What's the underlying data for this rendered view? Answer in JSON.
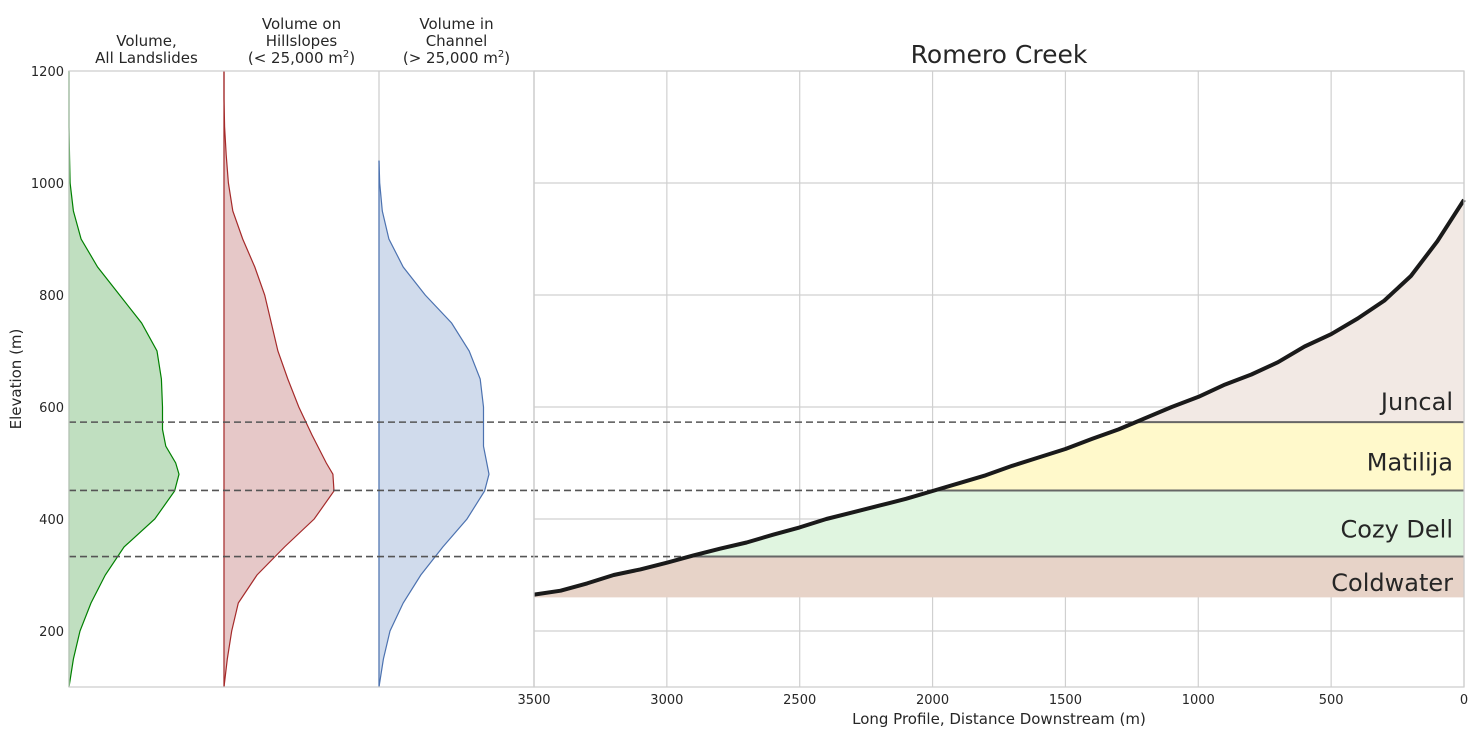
{
  "chart_data": {
    "type": "area",
    "title": "Romero Creek",
    "ylabel": "Elevation (m)",
    "xlabel": "Long Profile, Distance Downstream (m)",
    "ylim": [
      100,
      1200
    ],
    "xlim": [
      3500,
      0
    ],
    "x_inverted": true,
    "grid": true,
    "y_ticks": [
      200,
      400,
      600,
      800,
      1000,
      1200
    ],
    "x_ticks": [
      3500,
      3000,
      2500,
      2000,
      1500,
      1000,
      500,
      0
    ],
    "contact_elevations": [
      333,
      451,
      573
    ],
    "density_panels": [
      {
        "title_lines": [
          "Volume,",
          "All Landslides"
        ],
        "superscript": "",
        "title_suffix": "",
        "color": "#008000",
        "fill": "#c0dfc0",
        "elevation": [
          100,
          150,
          200,
          250,
          300,
          350,
          400,
          450,
          480,
          500,
          530,
          560,
          600,
          650,
          700,
          750,
          800,
          850,
          900,
          950,
          1000,
          1050,
          1100,
          1150,
          1200
        ],
        "density": [
          0.0,
          0.04,
          0.1,
          0.2,
          0.33,
          0.5,
          0.78,
          0.96,
          1.0,
          0.97,
          0.88,
          0.85,
          0.85,
          0.84,
          0.8,
          0.66,
          0.46,
          0.26,
          0.11,
          0.04,
          0.01,
          0.005,
          0.0,
          0.0,
          0.0
        ]
      },
      {
        "title_lines": [
          "Volume on",
          "Hillslopes"
        ],
        "superscript": "2",
        "title_suffix": "(< 25,000 m",
        "color": "#a52a2a",
        "fill": "#e6c8c8",
        "elevation": [
          100,
          150,
          200,
          250,
          300,
          350,
          400,
          450,
          480,
          500,
          550,
          600,
          650,
          700,
          750,
          800,
          850,
          900,
          950,
          1000,
          1050,
          1100,
          1150,
          1200
        ],
        "density": [
          0.0,
          0.03,
          0.07,
          0.13,
          0.3,
          0.55,
          0.82,
          1.0,
          0.99,
          0.93,
          0.8,
          0.68,
          0.58,
          0.49,
          0.43,
          0.37,
          0.28,
          0.17,
          0.08,
          0.04,
          0.02,
          0.005,
          0.0,
          0.0
        ]
      },
      {
        "title_lines": [
          "Volume in",
          "Channel"
        ],
        "superscript": "2",
        "title_suffix": "(> 25,000 m",
        "color": "#4c72b0",
        "fill": "#d0dbec",
        "elevation": [
          100,
          150,
          200,
          250,
          300,
          350,
          400,
          450,
          480,
          500,
          530,
          560,
          600,
          650,
          700,
          750,
          800,
          850,
          900,
          950,
          1000,
          1040
        ],
        "density": [
          0.0,
          0.04,
          0.1,
          0.22,
          0.38,
          0.58,
          0.8,
          0.96,
          1.0,
          0.98,
          0.95,
          0.95,
          0.95,
          0.92,
          0.82,
          0.66,
          0.42,
          0.22,
          0.09,
          0.03,
          0.006,
          0.0
        ]
      }
    ],
    "profile": {
      "name": "Romero Creek",
      "x": [
        3500,
        3400,
        3300,
        3200,
        3100,
        3000,
        2900,
        2800,
        2700,
        2600,
        2500,
        2400,
        2300,
        2200,
        2100,
        2000,
        1900,
        1800,
        1700,
        1600,
        1500,
        1400,
        1300,
        1200,
        1100,
        1000,
        900,
        800,
        700,
        600,
        500,
        400,
        300,
        200,
        100,
        0
      ],
      "y": [
        265,
        272,
        285,
        300,
        310,
        322,
        335,
        347,
        358,
        372,
        385,
        400,
        412,
        424,
        436,
        450,
        464,
        478,
        495,
        510,
        525,
        543,
        560,
        580,
        600,
        618,
        640,
        658,
        680,
        708,
        730,
        758,
        790,
        834,
        896,
        970
      ]
    },
    "formations": [
      {
        "name": "Coldwater",
        "bottom": 260,
        "top": 333,
        "fill": "#e7d3c8"
      },
      {
        "name": "Cozy Dell",
        "bottom": 333,
        "top": 451,
        "fill": "#e0f5e0"
      },
      {
        "name": "Matilija",
        "bottom": 451,
        "top": 573,
        "fill": "#fff9cb"
      },
      {
        "name": "Juncal",
        "bottom": 573,
        "top": 970,
        "fill": "#f2e9e4"
      }
    ]
  }
}
